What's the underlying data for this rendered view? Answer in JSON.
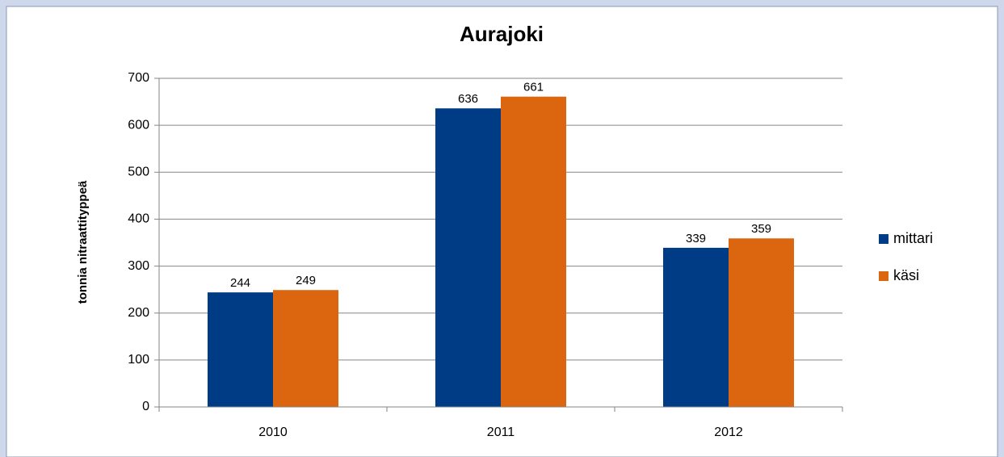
{
  "chart_data": {
    "type": "bar",
    "title": "Aurajoki",
    "y_label": "tonnia nitraattityppeä",
    "categories": [
      "2010",
      "2011",
      "2012"
    ],
    "series": [
      {
        "name": "mittari",
        "color": "#003b85",
        "values": [
          244,
          636,
          339
        ]
      },
      {
        "name": "käsi",
        "color": "#dc650f",
        "values": [
          249,
          661,
          359
        ]
      }
    ],
    "ylim": [
      0,
      700
    ],
    "yticks": [
      0,
      100,
      200,
      300,
      400,
      500,
      600,
      700
    ],
    "grid": true,
    "legend": "right"
  }
}
